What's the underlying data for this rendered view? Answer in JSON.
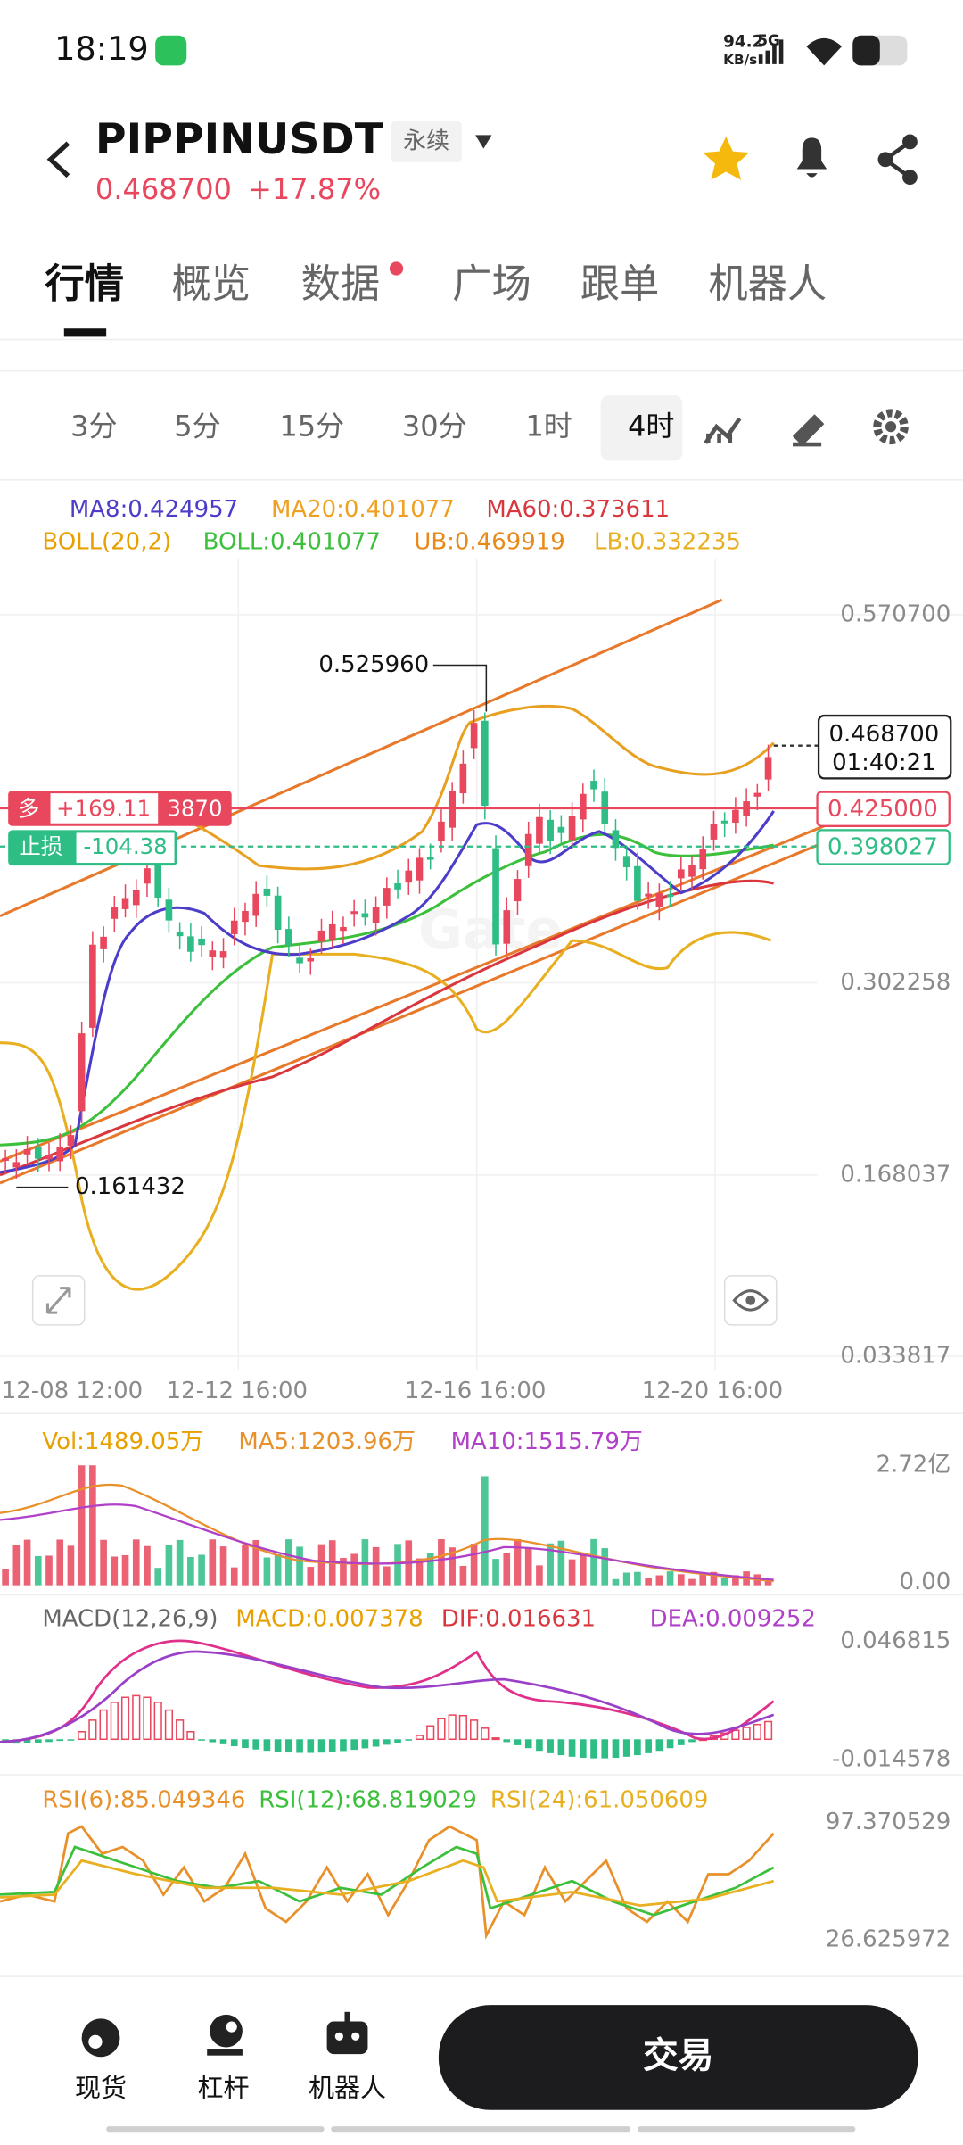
{
  "status_bar": {
    "time": "18:19",
    "speed": "94.2",
    "speed_unit": "KB/s",
    "network": "5G"
  },
  "header": {
    "symbol": "PIPPINUSDT",
    "badge": "永续",
    "price": "0.468700",
    "change": "+17.87%"
  },
  "tabs": [
    "行情",
    "概览",
    "数据",
    "广场",
    "跟单",
    "机器人"
  ],
  "timeframes": [
    "3分",
    "5分",
    "15分",
    "30分",
    "1时",
    "4时"
  ],
  "indicators": {
    "ma": [
      "MA8:0.424957",
      "MA20:0.401077",
      "MA60:0.373611"
    ],
    "boll": [
      "BOLL(20,2)",
      "BOLL:0.401077",
      "UB:0.469919",
      "LB:0.332235"
    ]
  },
  "price_chart": {
    "axis": [
      "0.570700",
      "0.302258",
      "0.168037",
      "0.033817"
    ],
    "current_price": "0.468700",
    "countdown": "01:40:21",
    "order_price": "0.425000",
    "stop_price": "0.398027",
    "high": "0.525960",
    "low": "0.161432",
    "position": {
      "side": "多",
      "pnl": "+169.11",
      "qty": "3870"
    },
    "stop": {
      "label": "止损",
      "pnl": "-104.38"
    },
    "x_axis": [
      "12-08 12:00",
      "12-12 16:00",
      "12-16 16:00",
      "12-20 16:00"
    ]
  },
  "volume": {
    "labels": [
      "Vol:1489.05万",
      "MA5:1203.96万",
      "MA10:1515.79万"
    ],
    "axis": [
      "2.72亿",
      "0.00"
    ]
  },
  "macd": {
    "labels": [
      "MACD(12,26,9)",
      "MACD:0.007378",
      "DIF:0.016631",
      "DEA:0.009252"
    ],
    "axis": [
      "0.046815",
      "-0.014578"
    ]
  },
  "rsi": {
    "labels": [
      "RSI(6):85.049346",
      "RSI(12):68.819029",
      "RSI(24):61.050609"
    ],
    "axis": [
      "97.370529",
      "26.625972"
    ]
  },
  "bottom_nav": [
    "现货",
    "杠杆",
    "机器人"
  ],
  "trade_button": "交易"
}
